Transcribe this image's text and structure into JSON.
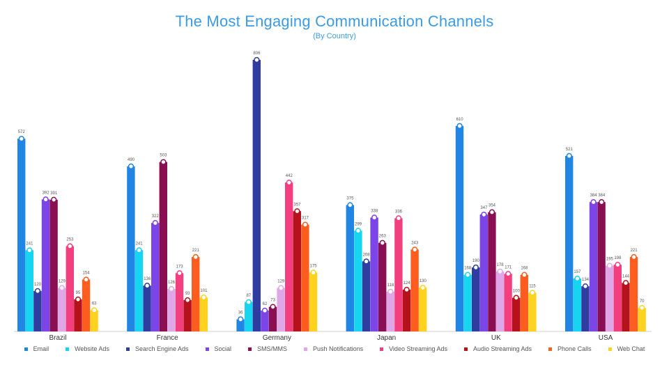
{
  "chart_data": {
    "type": "bar",
    "title": "The Most Engaging Communication Channels",
    "subtitle": "(By Country)",
    "categories": [
      "Brazil",
      "France",
      "Germany",
      "Japan",
      "UK",
      "USA"
    ],
    "ylim": [
      0,
      850
    ],
    "grid": false,
    "legend_position": "bottom",
    "series": [
      {
        "name": "Email",
        "color": "#2185e4",
        "values": [
          572,
          490,
          36,
          375,
          610,
          521
        ]
      },
      {
        "name": "Website Ads",
        "color": "#17d4f0",
        "values": [
          241,
          241,
          87,
          299,
          168,
          157
        ]
      },
      {
        "name": "Search Engine Ads",
        "color": "#2e3d9f",
        "values": [
          120,
          136,
          806,
          208,
          190,
          134
        ]
      },
      {
        "name": "Social",
        "color": "#7b45e8",
        "values": [
          392,
          322,
          62,
          338,
          347,
          384
        ]
      },
      {
        "name": "SMS/MMS",
        "color": "#8a0f52",
        "values": [
          391,
          503,
          73,
          263,
          354,
          384
        ]
      },
      {
        "name": "Push Notifications",
        "color": "#dfa7e8",
        "values": [
          129,
          126,
          129,
          118,
          178,
          195
        ]
      },
      {
        "name": "Video Streaming Ads",
        "color": "#f43f7f",
        "values": [
          253,
          173,
          442,
          336,
          171,
          198
        ]
      },
      {
        "name": "Audio Streaming Ads",
        "color": "#b5121b",
        "values": [
          95,
          93,
          357,
          124,
          100,
          144
        ]
      },
      {
        "name": "Phone Calls",
        "color": "#fd5d1f",
        "values": [
          154,
          221,
          317,
          243,
          168,
          221
        ]
      },
      {
        "name": "Web Chat",
        "color": "#ffd21f",
        "values": [
          63,
          101,
          175,
          130,
          115,
          70
        ]
      }
    ]
  }
}
